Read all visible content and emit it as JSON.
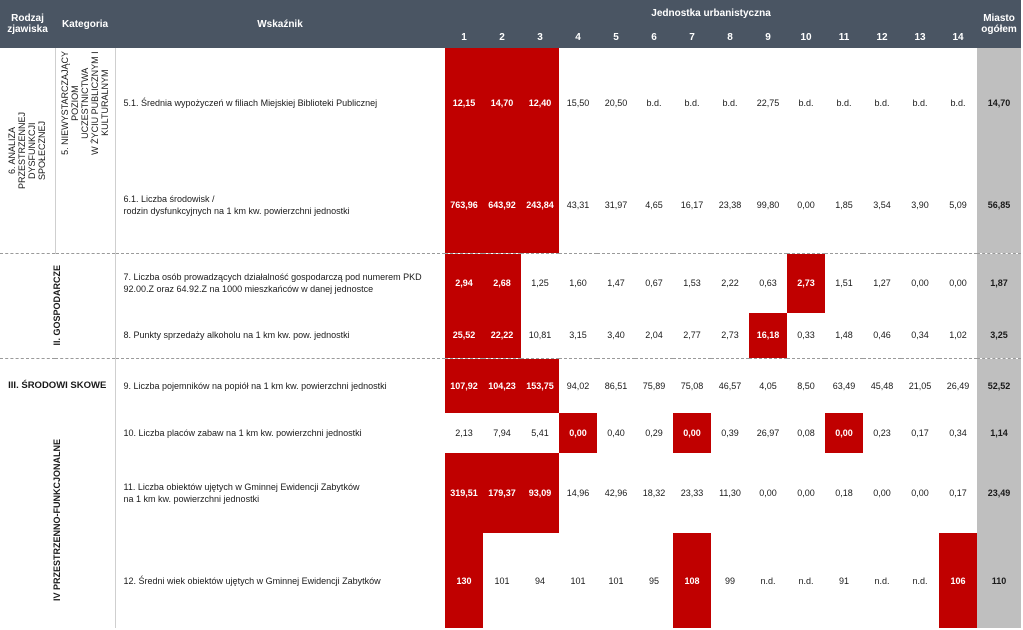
{
  "header": {
    "col_rodzaj": "Rodzaj zjawiska",
    "col_kategoria": "Kategoria",
    "col_wskaznik": "Wskaźnik",
    "col_jednostka": "Jednostka urbanistyczna",
    "col_miasto": "Miasto ogółem",
    "unit_numbers": [
      "1",
      "2",
      "3",
      "4",
      "5",
      "6",
      "7",
      "8",
      "9",
      "10",
      "11",
      "12",
      "13",
      "14"
    ]
  },
  "groups": {
    "rodzaj_6": "6. ANALIZA\nPRZESTRZENNEJ\nDYSFUNKCJI\nSPOŁECZNEJ",
    "kat_5": "5. NIEWYSTARCZAJĄCY\nPOZIOM\nUCZESTNICTWA\nW ŻYCIU PUBLICZNYM I\nKULTURALNYM",
    "gosp": "II. GOSPODARCZE",
    "srod": "III.\nŚRODOWI\nSKOWE",
    "ivprz": "IV PRZESTRZENNO-FUNKCJONALNE"
  },
  "rows": [
    {
      "label": "5.1. Średnia wypożyczeń w filiach Miejskiej Biblioteki Publicznej",
      "values": [
        "12,15",
        "14,70",
        "12,40",
        "15,50",
        "20,50",
        "b.d.",
        "b.d.",
        "b.d.",
        "22,75",
        "b.d.",
        "b.d.",
        "b.d.",
        "b.d.",
        "b.d."
      ],
      "total": "14,70",
      "red": [
        0,
        1,
        2
      ]
    },
    {
      "label": "6.1. Liczba środowisk /\nrodzin dysfunkcyjnych na 1 km kw. powierzchni jednostki",
      "values": [
        "763,96",
        "643,92",
        "243,84",
        "43,31",
        "31,97",
        "4,65",
        "16,17",
        "23,38",
        "99,80",
        "0,00",
        "1,85",
        "3,54",
        "3,90",
        "5,09"
      ],
      "total": "56,85",
      "red": [
        0,
        1,
        2
      ]
    },
    {
      "label": "7. Liczba osób prowadzących działalność gospodarczą pod numerem PKD 92.00.Z oraz 64.92.Z na 1000 mieszkańców w danej jednostce",
      "values": [
        "2,94",
        "2,68",
        "1,25",
        "1,60",
        "1,47",
        "0,67",
        "1,53",
        "2,22",
        "0,63",
        "2,73",
        "1,51",
        "1,27",
        "0,00",
        "0,00"
      ],
      "total": "1,87",
      "red": [
        0,
        1,
        9
      ]
    },
    {
      "label": "8. Punkty sprzedaży alkoholu na 1 km kw. pow. jednostki",
      "values": [
        "25,52",
        "22,22",
        "10,81",
        "3,15",
        "3,40",
        "2,04",
        "2,77",
        "2,73",
        "16,18",
        "0,33",
        "1,48",
        "0,46",
        "0,34",
        "1,02"
      ],
      "total": "3,25",
      "red": [
        0,
        1,
        8
      ]
    },
    {
      "label": "9. Liczba pojemników na popiół na 1 km kw. powierzchni jednostki",
      "values": [
        "107,92",
        "104,23",
        "153,75",
        "94,02",
        "86,51",
        "75,89",
        "75,08",
        "46,57",
        "4,05",
        "8,50",
        "63,49",
        "45,48",
        "21,05",
        "26,49"
      ],
      "total": "52,52",
      "red": [
        0,
        1,
        2
      ]
    },
    {
      "label": "10. Liczba placów zabaw na 1 km kw. powierzchni jednostki",
      "values": [
        "2,13",
        "7,94",
        "5,41",
        "0,00",
        "0,40",
        "0,29",
        "0,00",
        "0,39",
        "26,97",
        "0,08",
        "0,00",
        "0,23",
        "0,17",
        "0,34"
      ],
      "total": "1,14",
      "red": [
        3,
        6,
        10
      ]
    },
    {
      "label": "11. Liczba obiektów ujętych w Gminnej Ewidencji Zabytków\nna 1 km kw. powierzchni jednostki",
      "values": [
        "319,51",
        "179,37",
        "93,09",
        "14,96",
        "42,96",
        "18,32",
        "23,33",
        "11,30",
        "0,00",
        "0,00",
        "0,18",
        "0,00",
        "0,00",
        "0,17"
      ],
      "total": "23,49",
      "red": [
        0,
        1,
        2
      ]
    },
    {
      "label": "12. Średni wiek obiektów ujętych w Gminnej Ewidencji Zabytków",
      "values": [
        "130",
        "101",
        "94",
        "101",
        "101",
        "95",
        "108",
        "99",
        "n.d.",
        "n.d.",
        "91",
        "n.d.",
        "n.d.",
        "106"
      ],
      "total": "110",
      "red": [
        0,
        6,
        13
      ]
    }
  ],
  "colors": {
    "header_bg": "#4a5563",
    "highlight": "#c00000",
    "total_bg": "#bfbfbf"
  }
}
